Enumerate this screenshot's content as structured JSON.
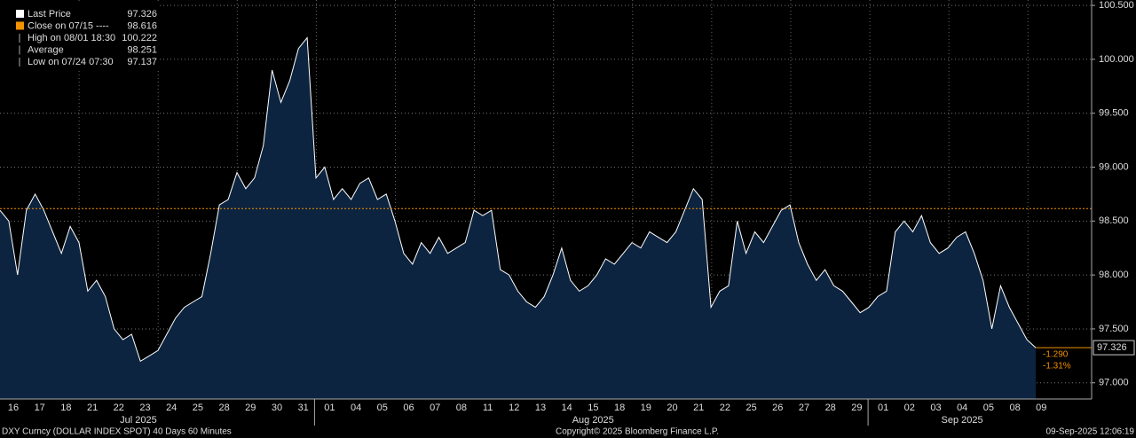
{
  "chart_data": {
    "type": "area",
    "series": [
      {
        "name": "Last Price",
        "color": "#ffffff",
        "fill": "#0c2440",
        "values": [
          98.6,
          98.5,
          98.0,
          98.6,
          98.75,
          98.6,
          98.4,
          98.2,
          98.45,
          98.3,
          97.85,
          97.95,
          97.8,
          97.5,
          97.4,
          97.45,
          97.2,
          97.25,
          97.3,
          97.45,
          97.6,
          97.7,
          97.75,
          97.8,
          98.2,
          98.65,
          98.7,
          98.95,
          98.8,
          98.9,
          99.2,
          99.9,
          99.6,
          99.8,
          100.1,
          100.2,
          98.9,
          99.0,
          98.7,
          98.8,
          98.7,
          98.85,
          98.9,
          98.7,
          98.75,
          98.5,
          98.2,
          98.1,
          98.3,
          98.2,
          98.35,
          98.2,
          98.25,
          98.3,
          98.6,
          98.55,
          98.6,
          98.05,
          98.0,
          97.85,
          97.75,
          97.7,
          97.8,
          98.0,
          98.25,
          97.95,
          97.85,
          97.9,
          98.0,
          98.15,
          98.1,
          98.2,
          98.3,
          98.25,
          98.4,
          98.35,
          98.3,
          98.4,
          98.6,
          98.8,
          98.7,
          97.7,
          97.85,
          97.9,
          98.5,
          98.2,
          98.4,
          98.3,
          98.45,
          98.6,
          98.65,
          98.3,
          98.1,
          97.95,
          98.05,
          97.9,
          97.85,
          97.75,
          97.65,
          97.7,
          97.8,
          97.85,
          98.4,
          98.5,
          98.4,
          98.55,
          98.3,
          98.2,
          98.25,
          98.35,
          98.4,
          98.2,
          97.95,
          97.5,
          97.9,
          97.7,
          97.55,
          97.4,
          97.326
        ]
      }
    ],
    "legend": [
      {
        "name": "Last Price",
        "value": 97.326
      },
      {
        "name": "Close on 07/15 ----",
        "value": 98.616
      },
      {
        "name": "High on 08/01 18:30",
        "value": 100.222
      },
      {
        "name": "Average",
        "value": 98.251
      },
      {
        "name": "Low on 07/24 07:30",
        "value": 97.137
      }
    ],
    "last_price_label": "97.326",
    "change_labels": [
      "-1.290",
      "-1.31%"
    ],
    "ylim": [
      96.85,
      100.55
    ],
    "yticks": [
      {
        "value": 97,
        "label": "97.000"
      },
      {
        "value": 97.5,
        "label": "97.500"
      },
      {
        "value": 98,
        "label": "98.000"
      },
      {
        "value": 98.5,
        "label": "98.500"
      },
      {
        "value": 99,
        "label": "99.000"
      },
      {
        "value": 99.5,
        "label": "99.500"
      },
      {
        "value": 100,
        "label": "100.000"
      },
      {
        "value": 100.5,
        "label": "100.500"
      }
    ],
    "grid": true,
    "x_tick_labels": [
      "16",
      "17",
      "18",
      "21",
      "22",
      "23",
      "24",
      "25",
      "28",
      "29",
      "30",
      "31",
      "01",
      "04",
      "05",
      "06",
      "07",
      "08",
      "11",
      "12",
      "13",
      "14",
      "15",
      "18",
      "19",
      "20",
      "21",
      "22",
      "25",
      "26",
      "27",
      "28",
      "29",
      "01",
      "02",
      "03",
      "04",
      "05",
      "08",
      "09"
    ],
    "month_labels": [
      "Jul 2025",
      "Aug 2025",
      "Sep 2025"
    ],
    "footer": {
      "left": "DXY Curncy (DOLLAR INDEX SPOT) 40 Days 60 Minutes",
      "center": "Copyright© 2025 Bloomberg Finance L.P.",
      "right": "09-Sep-2025 12:06:19"
    }
  }
}
